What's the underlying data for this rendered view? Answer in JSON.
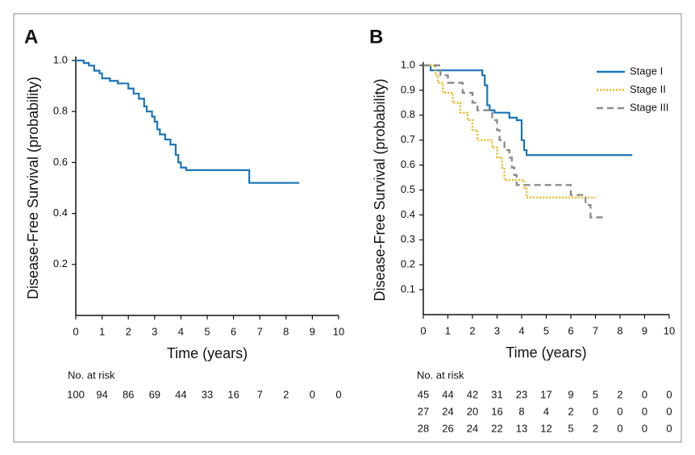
{
  "chart_data": [
    {
      "type": "line",
      "step": true,
      "panel_label": "A",
      "ylabel": "Disease-Free Survival (probability)",
      "xlabel": "Time (years)",
      "xlim": [
        0,
        10
      ],
      "xticks": [
        0,
        1,
        2,
        3,
        4,
        5,
        6,
        7,
        8,
        9,
        10
      ],
      "ylim": [
        0,
        1
      ],
      "yticks": [
        0.2,
        0.4,
        0.6,
        0.8,
        {
          "value": 1,
          "label": "1.0"
        }
      ],
      "grid": false,
      "series": [
        {
          "color": "#1a75b8",
          "dash": "solid",
          "x": [
            0,
            0.3,
            0.3,
            0.5,
            0.5,
            0.7,
            0.7,
            0.9,
            0.9,
            1.0,
            1.0,
            1.3,
            1.3,
            1.6,
            1.6,
            2.0,
            2.0,
            2.2,
            2.2,
            2.4,
            2.4,
            2.6,
            2.6,
            2.7,
            2.7,
            2.9,
            2.9,
            3.0,
            3.0,
            3.1,
            3.1,
            3.2,
            3.2,
            3.4,
            3.4,
            3.6,
            3.6,
            3.8,
            3.8,
            3.9,
            3.9,
            4.0,
            4.0,
            4.2,
            4.2,
            6.6,
            6.6,
            8.5
          ],
          "values": [
            1.0,
            1.0,
            0.99,
            0.99,
            0.98,
            0.98,
            0.96,
            0.96,
            0.95,
            0.95,
            0.93,
            0.93,
            0.92,
            0.92,
            0.91,
            0.91,
            0.89,
            0.89,
            0.87,
            0.87,
            0.85,
            0.85,
            0.82,
            0.82,
            0.8,
            0.8,
            0.78,
            0.78,
            0.76,
            0.76,
            0.73,
            0.73,
            0.71,
            0.71,
            0.69,
            0.69,
            0.67,
            0.67,
            0.63,
            0.63,
            0.6,
            0.6,
            0.58,
            0.58,
            0.57,
            0.57,
            0.52,
            0.52
          ]
        }
      ],
      "risk_table": {
        "label": "No. at risk",
        "rows": [
          [
            100,
            94,
            86,
            69,
            44,
            33,
            16,
            7,
            2,
            0,
            0
          ]
        ]
      }
    },
    {
      "type": "line",
      "step": true,
      "panel_label": "B",
      "ylabel": "Disease-Free Survival (probability)",
      "xlabel": "Time (years)",
      "xlim": [
        0,
        10
      ],
      "xticks": [
        0,
        1,
        2,
        3,
        4,
        5,
        6,
        7,
        8,
        9,
        10
      ],
      "ylim": [
        0,
        1
      ],
      "yticks": [
        0.1,
        0.2,
        0.3,
        0.4,
        0.5,
        0.6,
        0.7,
        0.8,
        0.9,
        {
          "value": 1,
          "label": "1.0"
        }
      ],
      "grid": false,
      "legend": "top-right",
      "series": [
        {
          "name": "Stage I",
          "color": "#1a75b8",
          "dash": "solid",
          "x": [
            0,
            0.3,
            0.3,
            2.4,
            2.4,
            2.5,
            2.5,
            2.6,
            2.6,
            2.7,
            2.7,
            2.9,
            2.9,
            3.5,
            3.5,
            3.8,
            3.8,
            4.0,
            4.0,
            4.1,
            4.1,
            4.2,
            4.2,
            8.5
          ],
          "values": [
            1.0,
            1.0,
            0.98,
            0.98,
            0.96,
            0.96,
            0.92,
            0.92,
            0.84,
            0.84,
            0.82,
            0.82,
            0.81,
            0.81,
            0.79,
            0.79,
            0.78,
            0.78,
            0.7,
            0.7,
            0.66,
            0.66,
            0.64,
            0.64
          ]
        },
        {
          "name": "Stage II",
          "color": "#e8b81c",
          "dash": "dotted",
          "x": [
            0,
            0.5,
            0.5,
            0.6,
            0.6,
            0.8,
            0.8,
            1.2,
            1.2,
            1.5,
            1.5,
            1.8,
            1.8,
            2.0,
            2.0,
            2.2,
            2.2,
            2.8,
            2.8,
            3.0,
            3.0,
            3.2,
            3.2,
            3.3,
            3.3,
            4.1,
            4.1,
            4.2,
            4.2,
            7.0
          ],
          "values": [
            1.0,
            1.0,
            0.96,
            0.96,
            0.93,
            0.93,
            0.89,
            0.89,
            0.85,
            0.85,
            0.81,
            0.81,
            0.78,
            0.78,
            0.74,
            0.74,
            0.7,
            0.7,
            0.67,
            0.67,
            0.63,
            0.63,
            0.59,
            0.59,
            0.54,
            0.54,
            0.51,
            0.51,
            0.47,
            0.47
          ]
        },
        {
          "name": "Stage III",
          "color": "#8c8c8c",
          "dash": "dashed",
          "x": [
            0,
            0.7,
            0.7,
            1.0,
            1.0,
            1.6,
            1.6,
            2.0,
            2.0,
            2.2,
            2.2,
            2.8,
            2.8,
            3.0,
            3.0,
            3.1,
            3.1,
            3.3,
            3.3,
            3.5,
            3.5,
            3.6,
            3.6,
            3.7,
            3.7,
            3.8,
            3.8,
            6.0,
            6.0,
            6.6,
            6.6,
            6.8,
            6.8,
            7.4
          ],
          "values": [
            1.0,
            1.0,
            0.96,
            0.96,
            0.93,
            0.93,
            0.89,
            0.89,
            0.85,
            0.85,
            0.82,
            0.82,
            0.78,
            0.78,
            0.74,
            0.74,
            0.7,
            0.7,
            0.66,
            0.66,
            0.63,
            0.63,
            0.59,
            0.59,
            0.56,
            0.56,
            0.52,
            0.52,
            0.48,
            0.48,
            0.44,
            0.44,
            0.39,
            0.39
          ]
        }
      ],
      "risk_table": {
        "label": "No. at risk",
        "rows": [
          [
            45,
            44,
            42,
            31,
            23,
            17,
            9,
            5,
            2,
            0,
            0
          ],
          [
            27,
            24,
            20,
            16,
            8,
            4,
            2,
            0,
            0,
            0,
            0
          ],
          [
            28,
            26,
            24,
            22,
            13,
            12,
            5,
            2,
            0,
            0,
            0
          ]
        ]
      }
    }
  ]
}
